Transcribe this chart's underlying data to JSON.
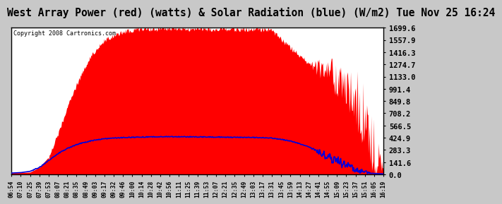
{
  "title": "West Array Power (red) (watts) & Solar Radiation (blue) (W/m2) Tue Nov 25 16:24",
  "copyright": "Copyright 2008 Cartronics.com",
  "title_fontsize": 10.5,
  "bg_color": "#c8c8c8",
  "plot_bg_color": "#ffffff",
  "red_color": "#ff0000",
  "blue_color": "#0000dd",
  "yticks": [
    0.0,
    141.6,
    283.3,
    424.9,
    566.5,
    708.2,
    849.8,
    991.4,
    1133.0,
    1274.7,
    1416.3,
    1557.9,
    1699.6
  ],
  "ymax": 1699.6,
  "ymin": 0.0,
  "xtick_labels": [
    "06:54",
    "07:10",
    "07:25",
    "07:39",
    "07:53",
    "08:07",
    "08:21",
    "08:35",
    "08:49",
    "09:03",
    "09:17",
    "09:32",
    "09:46",
    "10:00",
    "10:14",
    "10:28",
    "10:42",
    "10:56",
    "11:11",
    "11:25",
    "11:39",
    "11:53",
    "12:07",
    "12:21",
    "12:35",
    "12:49",
    "13:03",
    "13:17",
    "13:31",
    "13:45",
    "13:59",
    "14:13",
    "14:27",
    "14:41",
    "14:55",
    "15:09",
    "15:23",
    "15:37",
    "15:51",
    "16:05",
    "16:19"
  ],
  "red_power_profile": [
    20,
    20,
    25,
    80,
    200,
    480,
    780,
    1050,
    1280,
    1450,
    1560,
    1620,
    1660,
    1685,
    1692,
    1696,
    1698,
    1699,
    1699,
    1699,
    1698,
    1697,
    1696,
    1695,
    1694,
    1693,
    1691,
    1690,
    1680,
    1580,
    1480,
    1380,
    1300,
    1250,
    1200,
    1150,
    1100,
    900,
    650,
    300,
    50
  ],
  "red_spikes": [
    0,
    0,
    0,
    0,
    0,
    0,
    0,
    0,
    0,
    0,
    0,
    0,
    0,
    0,
    0,
    0,
    0,
    0,
    0,
    0,
    0,
    0,
    0,
    0,
    0,
    0,
    0,
    0,
    0,
    0,
    0,
    0,
    0,
    50,
    80,
    120,
    150,
    180,
    200,
    180,
    0
  ],
  "blue_solar_profile": [
    15,
    20,
    35,
    80,
    160,
    240,
    300,
    345,
    375,
    398,
    412,
    420,
    426,
    430,
    432,
    434,
    435,
    436,
    436,
    435,
    434,
    433,
    432,
    431,
    430,
    429,
    428,
    426,
    420,
    405,
    385,
    355,
    315,
    265,
    210,
    155,
    100,
    55,
    25,
    10,
    5
  ],
  "blue_spikes": [
    0,
    0,
    0,
    0,
    0,
    0,
    0,
    0,
    0,
    0,
    0,
    0,
    0,
    0,
    0,
    0,
    0,
    0,
    0,
    0,
    0,
    0,
    0,
    0,
    0,
    0,
    0,
    0,
    0,
    0,
    0,
    0,
    0,
    30,
    50,
    60,
    50,
    40,
    20,
    0,
    0
  ]
}
